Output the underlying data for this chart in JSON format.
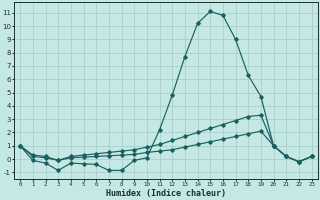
{
  "xlabel": "Humidex (Indice chaleur)",
  "bg_color": "#c5e8e5",
  "grid_color": "#a8d0cc",
  "line_color": "#1a6060",
  "xlim": [
    -0.5,
    23.5
  ],
  "ylim": [
    -1.5,
    11.8
  ],
  "xticks": [
    0,
    1,
    2,
    3,
    4,
    5,
    6,
    7,
    8,
    9,
    10,
    11,
    12,
    13,
    14,
    15,
    16,
    17,
    18,
    19,
    20,
    21,
    22,
    23
  ],
  "yticks": [
    -1,
    0,
    1,
    2,
    3,
    4,
    5,
    6,
    7,
    8,
    9,
    10,
    11
  ],
  "series1_x": [
    0,
    1,
    2,
    3,
    4,
    5,
    6,
    7,
    8,
    9,
    10,
    11,
    12,
    13,
    14,
    15,
    16,
    17,
    18,
    19,
    20,
    21,
    22,
    23
  ],
  "series1_y": [
    1.0,
    -0.1,
    -0.3,
    -0.85,
    -0.3,
    -0.35,
    -0.4,
    -0.85,
    -0.85,
    -0.1,
    0.1,
    2.2,
    4.8,
    7.7,
    10.2,
    11.1,
    10.8,
    9.0,
    6.3,
    4.7,
    1.0,
    0.2,
    -0.2,
    0.2
  ],
  "series2_x": [
    0,
    1,
    2,
    3,
    4,
    5,
    6,
    7,
    8,
    9,
    10,
    11,
    12,
    13,
    14,
    15,
    16,
    17,
    18,
    19,
    20,
    21,
    22,
    23
  ],
  "series2_y": [
    1.0,
    0.3,
    0.2,
    -0.1,
    0.2,
    0.3,
    0.4,
    0.5,
    0.6,
    0.7,
    0.9,
    1.1,
    1.4,
    1.7,
    2.0,
    2.3,
    2.6,
    2.9,
    3.2,
    3.3,
    1.0,
    0.2,
    -0.2,
    0.2
  ],
  "series3_x": [
    0,
    1,
    2,
    3,
    4,
    5,
    6,
    7,
    8,
    9,
    10,
    11,
    12,
    13,
    14,
    15,
    16,
    17,
    18,
    19,
    20,
    21,
    22,
    23
  ],
  "series3_y": [
    1.0,
    0.2,
    0.1,
    -0.1,
    0.1,
    0.15,
    0.2,
    0.25,
    0.3,
    0.35,
    0.5,
    0.6,
    0.7,
    0.9,
    1.1,
    1.3,
    1.5,
    1.7,
    1.9,
    2.1,
    1.0,
    0.2,
    -0.2,
    0.2
  ]
}
